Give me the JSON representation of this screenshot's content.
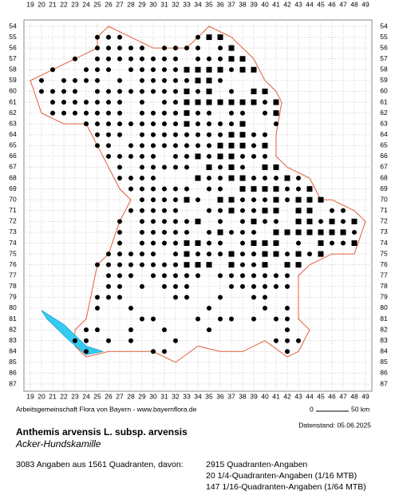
{
  "map": {
    "x_labels": [
      19,
      20,
      21,
      22,
      23,
      24,
      25,
      26,
      27,
      28,
      29,
      30,
      31,
      32,
      33,
      34,
      35,
      36,
      37,
      38,
      39,
      40,
      41,
      42,
      43,
      44,
      45,
      46,
      47,
      48,
      49
    ],
    "y_labels": [
      54,
      55,
      56,
      57,
      58,
      59,
      60,
      61,
      62,
      63,
      64,
      65,
      66,
      67,
      68,
      69,
      70,
      71,
      72,
      73,
      74,
      75,
      76,
      77,
      78,
      79,
      80,
      81,
      82,
      83,
      84,
      85,
      86,
      87
    ]
  },
  "footer": {
    "credit": "Arbeitsgemeinschaft Flora von Bayern - www.bayernflora.de",
    "scale": {
      "start": "0",
      "end": "50 km"
    },
    "date": "Datenstand: 05.06.2025"
  },
  "species": {
    "name": "Anthemis arvensis L. subsp. arvensis",
    "common": "Acker-Hundskamille"
  },
  "stats": {
    "summary": "3083 Angaben aus 1561 Quadranten, davon:",
    "lines": [
      "2915 Quadranten-Angaben",
      "20 1/4-Quadranten-Angaben (1/16 MTB)",
      "147 1/16-Quadranten-Angaben (1/64 MTB)"
    ]
  }
}
